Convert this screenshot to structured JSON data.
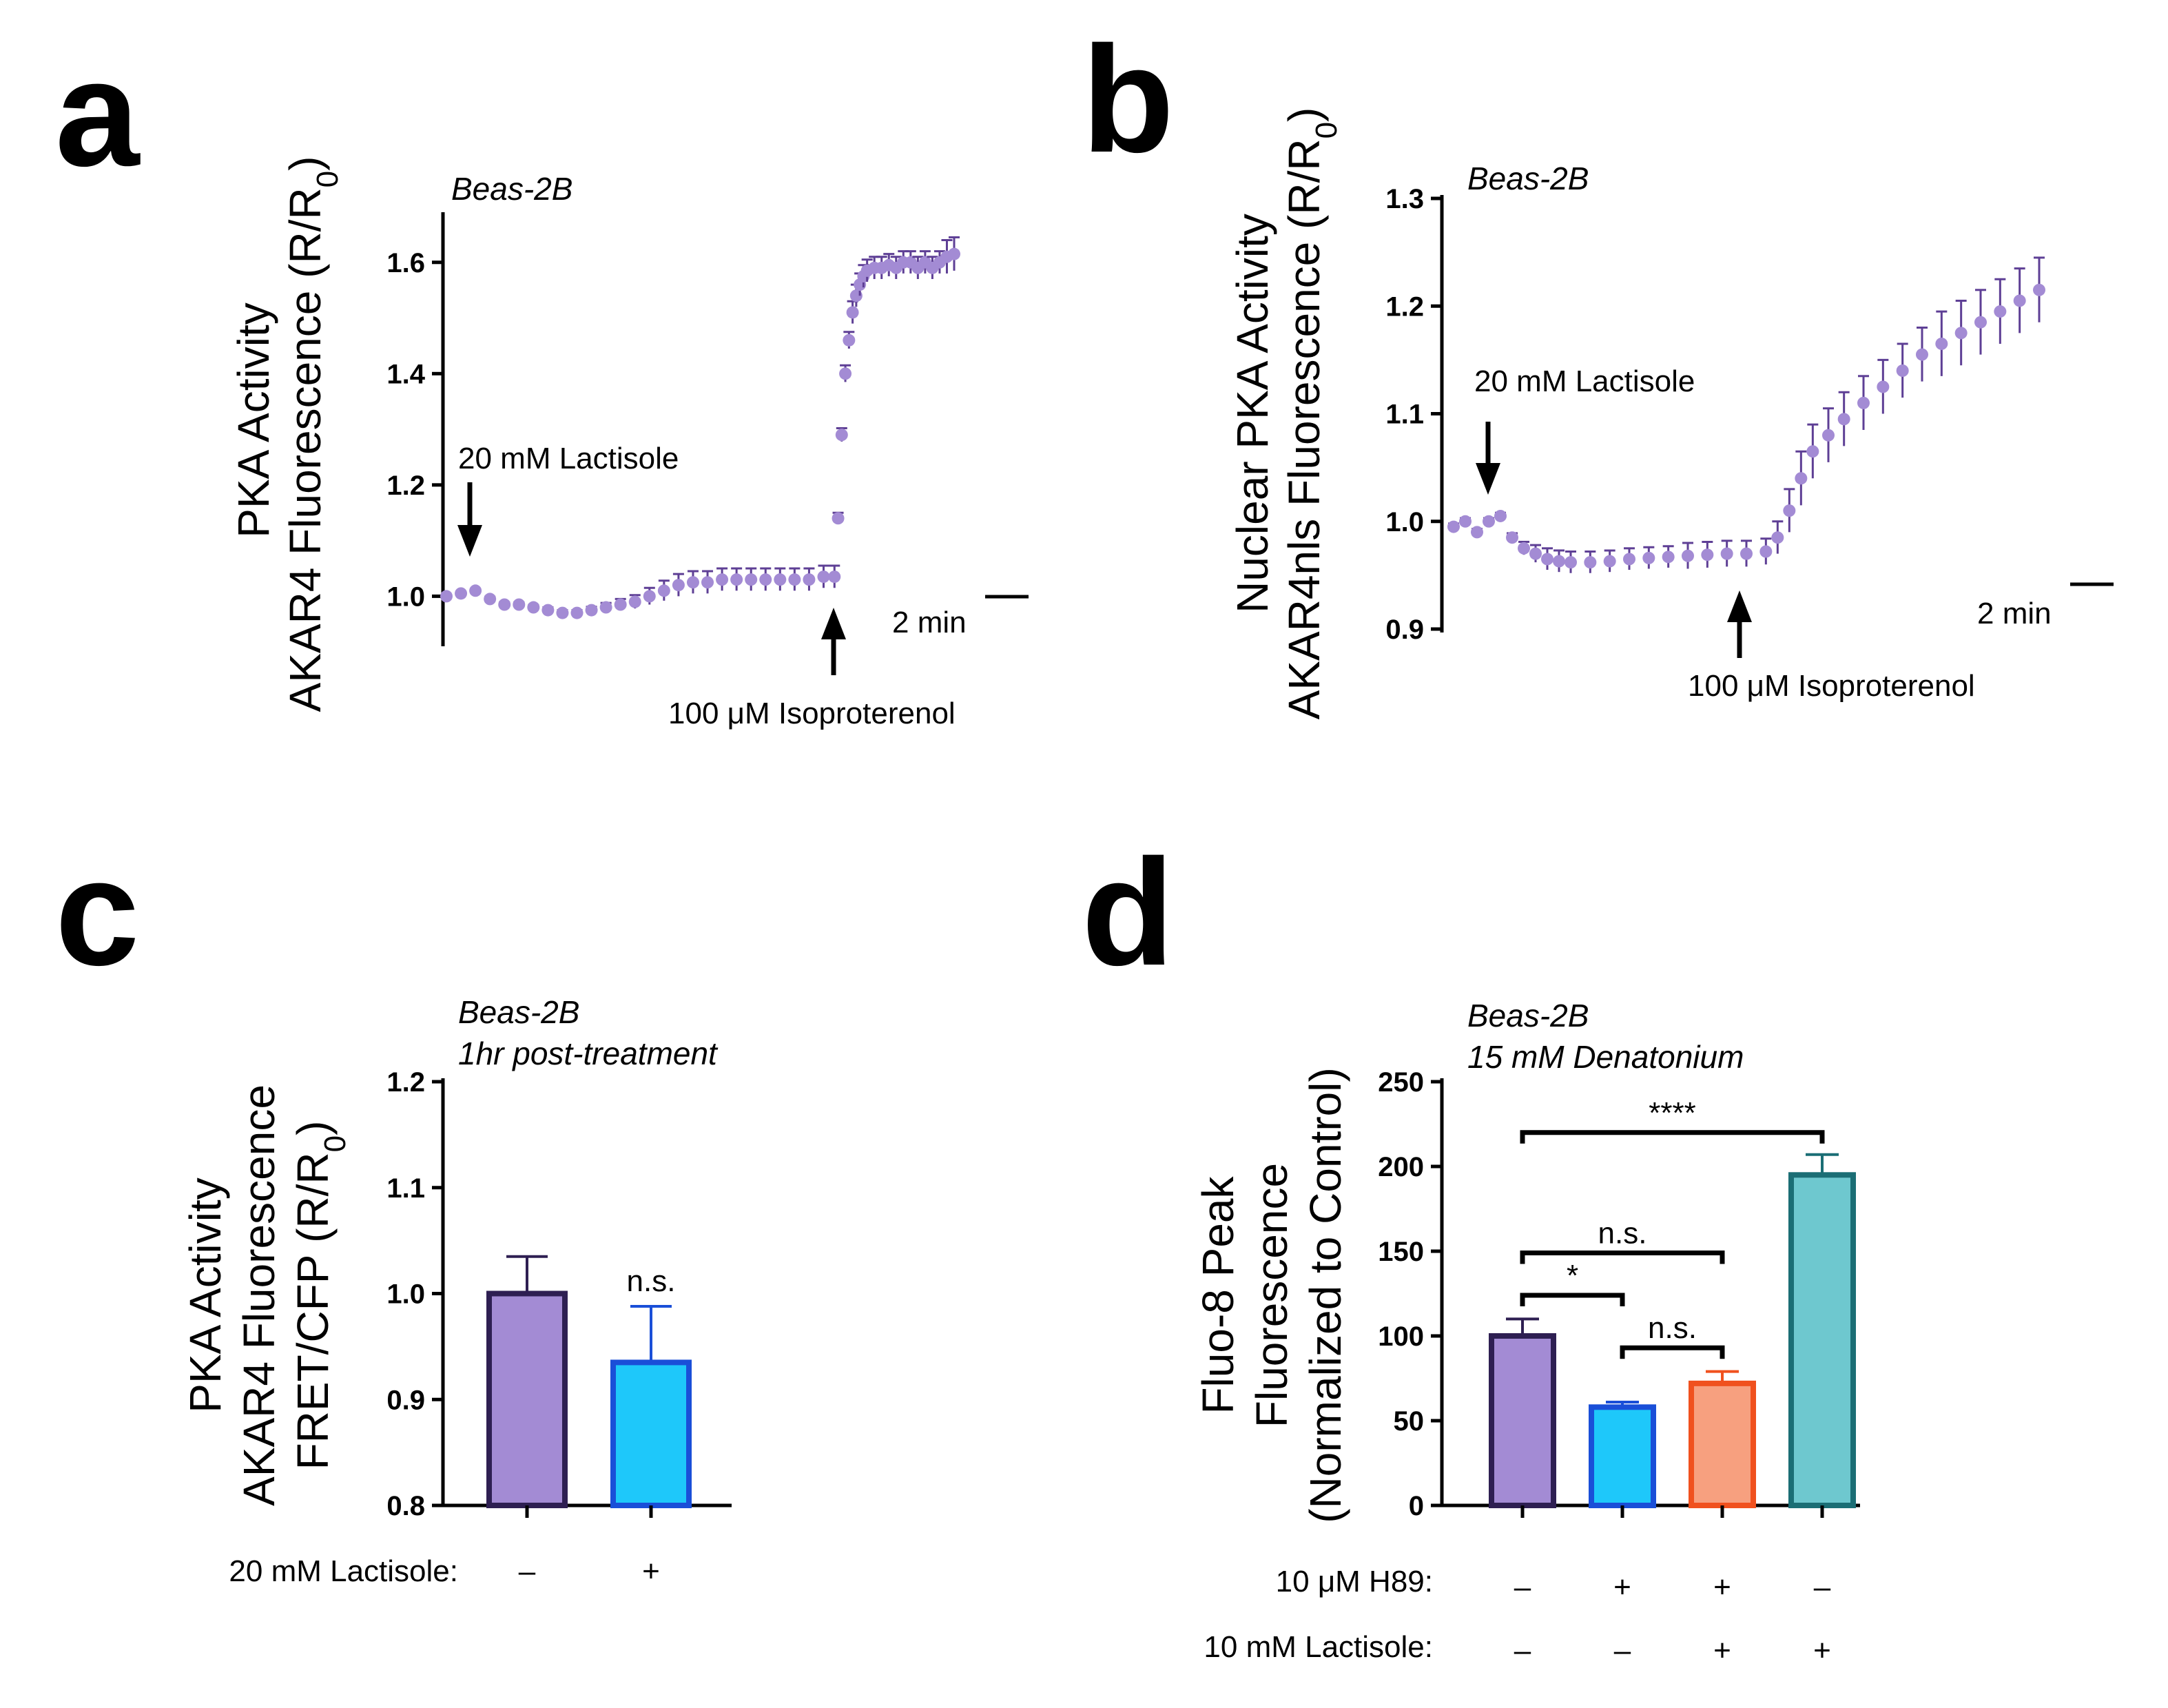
{
  "colors": {
    "purple": "#a38bd4",
    "purple_edge": "#2e1f52",
    "blue": "#1ec8fa",
    "blue_edge": "#1a4fd8",
    "orange": "#f7a07f",
    "orange_edge": "#f0511e",
    "teal": "#6ec8cf",
    "teal_edge": "#1b6e75",
    "trace": "#a38bd4"
  },
  "chart_data": [
    {
      "panel": "a",
      "type": "scatter",
      "cell_line": "Beas-2B",
      "ylabel_line1": "PKA Activity",
      "ylabel_line2": "AKAR4 Fluorescence (R/R",
      "ylabel_sub": "0",
      "ylim": [
        0.92,
        1.7
      ],
      "yticks": [
        "1.0",
        "1.2",
        "1.4",
        "1.6"
      ],
      "ytick_values": [
        1.0,
        1.2,
        1.4,
        1.6
      ],
      "x_unit": "frame",
      "xlim": [
        0,
        140
      ],
      "annotations": {
        "lactisole": "20 mM Lactisole",
        "isoproterenol": "100 μM Isoproterenol",
        "scale": "2 min"
      },
      "lactisole_x": 8,
      "isoproterenol_x": 108,
      "trace": {
        "x": [
          0,
          4,
          8,
          12,
          16,
          20,
          24,
          28,
          32,
          36,
          40,
          44,
          48,
          52,
          56,
          60,
          64,
          68,
          72,
          76,
          80,
          84,
          88,
          92,
          96,
          100,
          104,
          107,
          108,
          109,
          110,
          111,
          112,
          113,
          114,
          115,
          116,
          118,
          120,
          122,
          124,
          126,
          128,
          130,
          132,
          134,
          136,
          138,
          140
        ],
        "y": [
          1.0,
          1.005,
          1.01,
          0.995,
          0.985,
          0.985,
          0.98,
          0.975,
          0.97,
          0.97,
          0.975,
          0.98,
          0.985,
          0.99,
          1.0,
          1.01,
          1.02,
          1.025,
          1.025,
          1.03,
          1.03,
          1.03,
          1.03,
          1.03,
          1.03,
          1.03,
          1.035,
          1.035,
          1.14,
          1.29,
          1.4,
          1.46,
          1.51,
          1.54,
          1.56,
          1.575,
          1.585,
          1.59,
          1.59,
          1.595,
          1.59,
          1.6,
          1.6,
          1.59,
          1.6,
          1.59,
          1.6,
          1.61,
          1.615
        ],
        "err": [
          0.003,
          0.003,
          0.003,
          0.004,
          0.004,
          0.004,
          0.004,
          0.005,
          0.005,
          0.005,
          0.006,
          0.008,
          0.01,
          0.012,
          0.015,
          0.018,
          0.02,
          0.02,
          0.02,
          0.02,
          0.02,
          0.02,
          0.02,
          0.02,
          0.02,
          0.02,
          0.02,
          0.02,
          0.01,
          0.012,
          0.015,
          0.015,
          0.02,
          0.02,
          0.02,
          0.02,
          0.02,
          0.02,
          0.02,
          0.02,
          0.02,
          0.02,
          0.02,
          0.02,
          0.02,
          0.02,
          0.02,
          0.03,
          0.03
        ]
      }
    },
    {
      "panel": "b",
      "type": "scatter",
      "cell_line": "Beas-2B",
      "ylabel_line1": "Nuclear PKA Activity",
      "ylabel_line2": "AKAR4nls Fluorescence (R/R",
      "ylabel_sub": "0",
      "ylim": [
        0.9,
        1.3
      ],
      "yticks": [
        "0.9",
        "1.0",
        "1.1",
        "1.2",
        "1.3"
      ],
      "ytick_values": [
        0.9,
        1.0,
        1.1,
        1.2,
        1.3
      ],
      "x_unit": "frame",
      "xlim": [
        0,
        150
      ],
      "annotations": {
        "lactisole": "20 mM Lactisole",
        "isoproterenol": "100 μM Isoproterenol",
        "scale": "2 min"
      },
      "lactisole_x": 9,
      "isoproterenol_x": 81,
      "trace": {
        "x": [
          0,
          3,
          6,
          9,
          12,
          15,
          18,
          21,
          24,
          27,
          30,
          35,
          40,
          45,
          50,
          55,
          60,
          65,
          70,
          75,
          80,
          83,
          86,
          89,
          92,
          96,
          100,
          105,
          110,
          115,
          120,
          125,
          130,
          135,
          140,
          145,
          150
        ],
        "y": [
          0.995,
          1.0,
          0.99,
          1.0,
          1.005,
          0.985,
          0.975,
          0.97,
          0.965,
          0.963,
          0.962,
          0.962,
          0.963,
          0.965,
          0.966,
          0.967,
          0.968,
          0.969,
          0.97,
          0.97,
          0.972,
          0.985,
          1.01,
          1.04,
          1.065,
          1.08,
          1.095,
          1.11,
          1.125,
          1.14,
          1.155,
          1.165,
          1.175,
          1.185,
          1.195,
          1.205,
          1.215
        ],
        "err": [
          0.003,
          0.003,
          0.003,
          0.003,
          0.003,
          0.004,
          0.006,
          0.008,
          0.01,
          0.01,
          0.01,
          0.01,
          0.01,
          0.01,
          0.01,
          0.01,
          0.012,
          0.012,
          0.012,
          0.012,
          0.012,
          0.015,
          0.02,
          0.025,
          0.025,
          0.025,
          0.025,
          0.025,
          0.025,
          0.025,
          0.025,
          0.03,
          0.03,
          0.03,
          0.03,
          0.03,
          0.03
        ]
      }
    },
    {
      "panel": "c",
      "type": "bar",
      "cell_line": "Beas-2B",
      "subtitle": "1hr post-treatment",
      "ylabel_line1": "PKA Activity",
      "ylabel_line2": "AKAR4 Fluorescence",
      "ylabel_line3": "FRET/CFP (R/R",
      "ylabel_sub": "0",
      "ylim": [
        0.8,
        1.2
      ],
      "yticks": [
        "0.8",
        "0.9",
        "1.0",
        "1.1",
        "1.2"
      ],
      "ytick_values": [
        0.8,
        0.9,
        1.0,
        1.1,
        1.2
      ],
      "row_label": "20 mM Lactisole:",
      "categories": [
        "–",
        "+"
      ],
      "values": [
        1.0,
        0.935
      ],
      "errors": [
        0.035,
        0.053
      ],
      "significance": [
        {
          "label": "n.s.",
          "bar": 1
        }
      ]
    },
    {
      "panel": "d",
      "type": "bar",
      "cell_line": "Beas-2B",
      "subtitle": "15 mM Denatonium",
      "ylabel_line1": "Fluo-8 Peak",
      "ylabel_line2": "Fluorescence",
      "ylabel_line3": "(Normalized to Control)",
      "ylim": [
        0,
        250
      ],
      "yticks": [
        "0",
        "50",
        "100",
        "150",
        "200",
        "250"
      ],
      "ytick_values": [
        0,
        50,
        100,
        150,
        200,
        250
      ],
      "row_labels": [
        "10 μM H89:",
        "10 mM Lactisole:"
      ],
      "h89": [
        "–",
        "+",
        "+",
        "–"
      ],
      "lactisole": [
        "–",
        "–",
        "+",
        "+"
      ],
      "values": [
        100,
        58,
        72,
        195
      ],
      "errors": [
        10,
        3,
        7,
        12
      ],
      "significance": [
        {
          "from": 0,
          "to": 3,
          "label": "****",
          "y": 220
        },
        {
          "from": 0,
          "to": 2,
          "label": "n.s.",
          "y": 149
        },
        {
          "from": 0,
          "to": 1,
          "label": "*",
          "y": 124
        },
        {
          "from": 1,
          "to": 2,
          "label": "n.s.",
          "y": 93
        }
      ]
    }
  ],
  "panels": {
    "a": "a",
    "b": "b",
    "c": "c",
    "d": "d"
  }
}
